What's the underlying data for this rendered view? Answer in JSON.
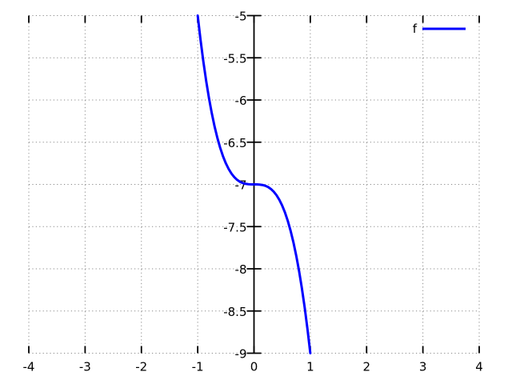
{
  "chart_data": {
    "type": "line",
    "title": "",
    "xlabel": "",
    "ylabel": "",
    "xlim": [
      -4,
      4
    ],
    "ylim": [
      -9,
      -5
    ],
    "grid": "dotted",
    "y_axis_at_x": 0,
    "x_ticks": {
      "values": [
        -4,
        -3,
        -2,
        -1,
        0,
        1,
        2,
        3,
        4
      ],
      "labels": [
        "-4",
        "-3",
        "-2",
        "-1",
        "0",
        "1",
        "2",
        "3",
        "4"
      ]
    },
    "y_ticks": {
      "values": [
        -5,
        -5.5,
        -6,
        -6.5,
        -7,
        -7.5,
        -8,
        -8.5,
        -9
      ],
      "labels": [
        "-5",
        "-5.5",
        "-6",
        "-6.5",
        "-7",
        "-7.5",
        "-8",
        "-8.5",
        "-9"
      ]
    },
    "legend": {
      "position": "top-right",
      "entries": [
        {
          "label": "f"
        }
      ]
    },
    "series": [
      {
        "name": "f",
        "color": "#0000ff",
        "x": [
          -1.0,
          -0.95,
          -0.9,
          -0.85,
          -0.8,
          -0.75,
          -0.7,
          -0.65,
          -0.6,
          -0.55,
          -0.5,
          -0.45,
          -0.4,
          -0.35,
          -0.3,
          -0.25,
          -0.2,
          -0.15,
          -0.1,
          -0.05,
          0.0,
          0.05,
          0.1,
          0.15,
          0.2,
          0.25,
          0.3,
          0.35,
          0.4,
          0.45,
          0.5,
          0.55,
          0.6,
          0.65,
          0.7,
          0.75,
          0.8,
          0.85,
          0.9,
          0.95,
          1.0
        ],
        "y": [
          -5.0,
          -5.28525,
          -5.542,
          -5.77175,
          -5.976,
          -6.15625,
          -6.314,
          -6.45075,
          -6.568,
          -6.66725,
          -6.75,
          -6.81775,
          -6.872,
          -6.91425,
          -6.946,
          -6.96875,
          -6.984,
          -6.99325,
          -6.998,
          -6.99975,
          -7.0,
          -7.00025,
          -7.002,
          -7.00675,
          -7.016,
          -7.03125,
          -7.054,
          -7.08575,
          -7.128,
          -7.18225,
          -7.25,
          -7.33275,
          -7.432,
          -7.54925,
          -7.686,
          -7.84375,
          -8.024,
          -8.22825,
          -8.458,
          -8.71475,
          -9.0
        ]
      }
    ],
    "colors": {
      "background": "#ffffff",
      "axis": "#000000",
      "tick": "#000000",
      "grid": "#8a8a8a",
      "text": "#000000"
    }
  }
}
